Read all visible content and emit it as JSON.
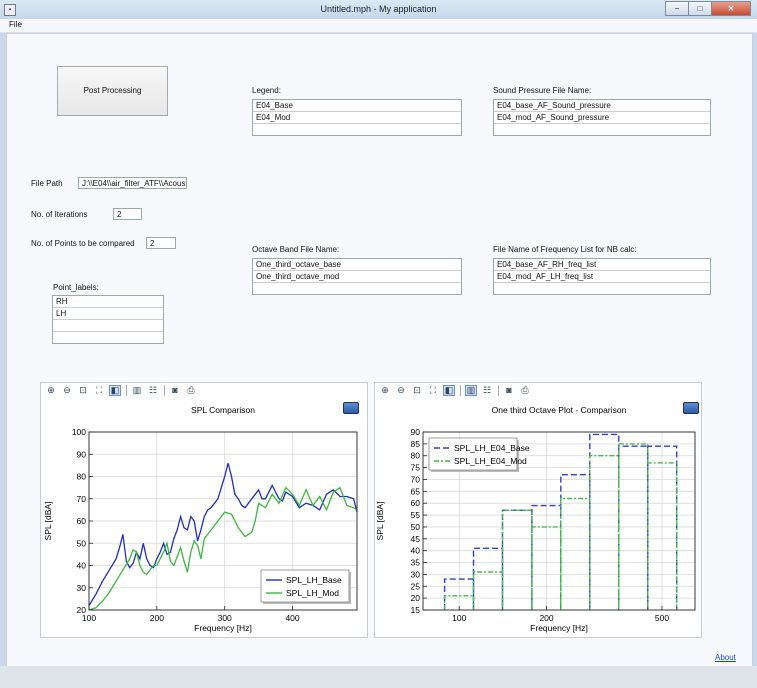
{
  "window": {
    "title": "Untitled.mph - My application",
    "min": "−",
    "max": "□",
    "close": "✕"
  },
  "menu": {
    "file": "File"
  },
  "post_button": "Post Processing",
  "legend": {
    "label": "Legend:",
    "rows": [
      "E04_Base",
      "E04_Mod",
      ""
    ]
  },
  "sound_pressure": {
    "label": "Sound Pressure File Name:",
    "rows": [
      "E04_base_AF_Sound_pressure",
      "E04_mod_AF_Sound_pressure",
      ""
    ]
  },
  "file_path": {
    "label": "File Path",
    "value": "J:\\\\E04\\\\air_filter_ATF\\\\Acoust"
  },
  "iterations": {
    "label": "No. of Iterations",
    "value": "2"
  },
  "points": {
    "label": "No. of Points to be compared",
    "value": "2"
  },
  "octave_band": {
    "label": "Octave Band File Name:",
    "rows": [
      "One_third_octave_base",
      "One_third_octave_mod",
      ""
    ]
  },
  "freq_list": {
    "label": "File Name of Frequency List for NB calc:",
    "rows": [
      "E04_base_AF_RH_freq_list",
      "E04_mod_AF_LH_freq_list",
      ""
    ]
  },
  "point_labels": {
    "label": "Point_labels:",
    "rows": [
      "RH",
      "LH",
      "",
      ""
    ]
  },
  "about": "About",
  "chart_data": [
    {
      "type": "line",
      "title": "SPL Comparison",
      "xlabel": "Frequency [Hz]",
      "ylabel": "SPL [dBA]",
      "xlim": [
        100,
        495
      ],
      "ylim": [
        20,
        100
      ],
      "xticks": [
        100,
        200,
        300,
        400
      ],
      "yticks": [
        20,
        30,
        40,
        50,
        60,
        70,
        80,
        90,
        100
      ],
      "grid": true,
      "legend_position": "bottom-right",
      "colors": [
        "#1f2fbf",
        "#3cb83c"
      ],
      "series": [
        {
          "name": "SPL_LH_Base",
          "x": [
            100,
            110,
            120,
            130,
            140,
            145,
            150,
            155,
            160,
            165,
            170,
            175,
            180,
            185,
            190,
            195,
            200,
            205,
            210,
            215,
            220,
            225,
            230,
            235,
            240,
            245,
            250,
            255,
            260,
            265,
            270,
            275,
            280,
            290,
            300,
            305,
            310,
            315,
            320,
            325,
            330,
            335,
            340,
            345,
            350,
            355,
            360,
            370,
            380,
            385,
            390,
            400,
            410,
            420,
            430,
            440,
            450,
            460,
            470,
            480,
            490,
            495
          ],
          "y": [
            22,
            27,
            33,
            38,
            43,
            48,
            54,
            42,
            39,
            41,
            46,
            43,
            50,
            43,
            40,
            39,
            43,
            46,
            50,
            45,
            46,
            52,
            56,
            62,
            57,
            56,
            62,
            60,
            51,
            56,
            62,
            65,
            66,
            70,
            80,
            86,
            80,
            72,
            70,
            67,
            66,
            68,
            70,
            72,
            74,
            70,
            70,
            76,
            70,
            69,
            73,
            71,
            66,
            68,
            67,
            65,
            72,
            74,
            71,
            71,
            70,
            64
          ]
        },
        {
          "name": "SPL_LH_Mod",
          "x": [
            100,
            110,
            120,
            130,
            140,
            150,
            160,
            165,
            170,
            175,
            180,
            185,
            190,
            195,
            200,
            205,
            210,
            215,
            220,
            225,
            230,
            235,
            240,
            245,
            250,
            255,
            260,
            265,
            270,
            280,
            290,
            300,
            310,
            320,
            330,
            340,
            345,
            350,
            360,
            370,
            380,
            390,
            400,
            410,
            420,
            430,
            440,
            450,
            460,
            470,
            480,
            490,
            495
          ],
          "y": [
            20,
            21,
            24,
            28,
            33,
            38,
            43,
            47,
            46,
            40,
            37,
            36,
            38,
            40,
            40,
            43,
            46,
            50,
            42,
            40,
            44,
            48,
            42,
            37,
            46,
            51,
            49,
            43,
            52,
            56,
            60,
            64,
            63,
            57,
            53,
            55,
            60,
            68,
            66,
            72,
            68,
            75,
            72,
            67,
            74,
            67,
            71,
            65,
            73,
            75,
            67,
            66,
            65
          ]
        }
      ]
    },
    {
      "type": "line",
      "title": "One third Octave Plot - Comparison",
      "xlabel": "Frequency [Hz]",
      "ylabel": "SPL [dBA]",
      "xlim": [
        75,
        650
      ],
      "ylim": [
        15,
        90
      ],
      "xscale": "log",
      "xticks": [
        100,
        200,
        500
      ],
      "yticks": [
        15,
        20,
        25,
        30,
        35,
        40,
        45,
        50,
        55,
        60,
        65,
        70,
        75,
        80,
        85,
        90
      ],
      "grid": true,
      "legend_position": "top-left",
      "colors": [
        "#2f3fcf",
        "#44bb44"
      ],
      "series": [
        {
          "name": "SPL_LH_E04_Base",
          "bands": [
            [
              89,
              112,
              28
            ],
            [
              112,
              141,
              41
            ],
            [
              141,
              178,
              57
            ],
            [
              178,
              224,
              59
            ],
            [
              224,
              282,
              72
            ],
            [
              282,
              355,
              89
            ],
            [
              355,
              447,
              84
            ],
            [
              447,
              562,
              84
            ]
          ]
        },
        {
          "name": "SPL_LH_E04_Mod",
          "bands": [
            [
              89,
              112,
              21
            ],
            [
              112,
              141,
              31
            ],
            [
              141,
              178,
              57
            ],
            [
              178,
              224,
              50
            ],
            [
              224,
              282,
              62
            ],
            [
              282,
              355,
              80
            ],
            [
              355,
              447,
              85
            ],
            [
              447,
              562,
              77
            ]
          ]
        }
      ]
    }
  ]
}
